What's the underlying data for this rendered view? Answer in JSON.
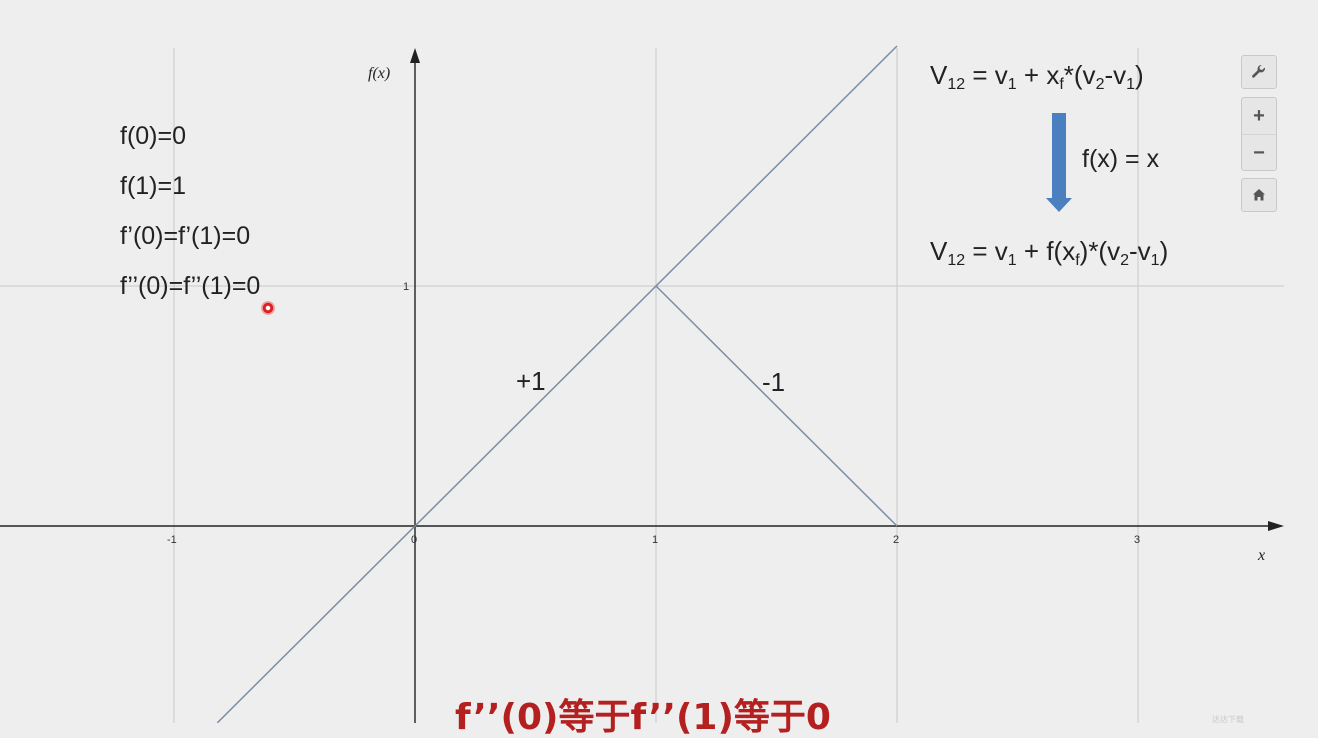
{
  "chart_data": {
    "type": "line",
    "xlabel": "x",
    "ylabel": "f(x)",
    "x_ticks": [
      "-1",
      "0",
      "1",
      "2",
      "3"
    ],
    "y_ticks": [
      "1"
    ],
    "xlim": [
      -1.72,
      3.62
    ],
    "ylim": [
      -0.82,
      2.0
    ],
    "grid": true,
    "series": [
      {
        "x": [
          -0.82,
          2.0
        ],
        "y": [
          -0.82,
          2.0
        ],
        "color": "#7a8ea7"
      },
      {
        "x": [
          1,
          2
        ],
        "y": [
          1,
          0
        ],
        "color": "#7a8ea7"
      }
    ],
    "annotations": [
      {
        "text": "+1",
        "x": 0.5,
        "y": 0.6
      },
      {
        "text": "-1",
        "x": 1.5,
        "y": 0.6
      }
    ]
  },
  "conditions": [
    "f(0)=0",
    "f(1)=1",
    "f’(0)=f’(1)=0",
    "f’’(0)=f’’(1)=0"
  ],
  "formulas": {
    "top": {
      "V": "V",
      "V_sub": "12",
      "eq": " = v",
      "v1_sub": "1",
      "plus": " + x",
      "xf_sub": "f",
      "mul": "*(v",
      "v2_sub": "2",
      "minus": "-v",
      "v1b_sub": "1",
      "close": ")"
    },
    "arrow_label": "f(x) = x",
    "bottom": {
      "V": "V",
      "V_sub": "12",
      "eq": " = v",
      "v1_sub": "1",
      "plus": " + f(x",
      "xf_sub": "f",
      "mul": ")*(v",
      "v2_sub": "2",
      "minus": "-v",
      "v1b_sub": "1",
      "close": ")"
    }
  },
  "toolbar": {
    "settings_icon": "wrench-icon",
    "zoom_in_label": "+",
    "zoom_out_label": "−",
    "home_icon": "home-icon"
  },
  "subtitle": "f’’(0)等于f’’(1)等于0",
  "watermark": "达达下载",
  "colors": {
    "background": "#eeeeee",
    "grid": "#c8c8c8",
    "axis": "#222222",
    "line": "#7a8ea7",
    "arrow": "#4a7fc0",
    "subtitle": "#b3201f"
  }
}
